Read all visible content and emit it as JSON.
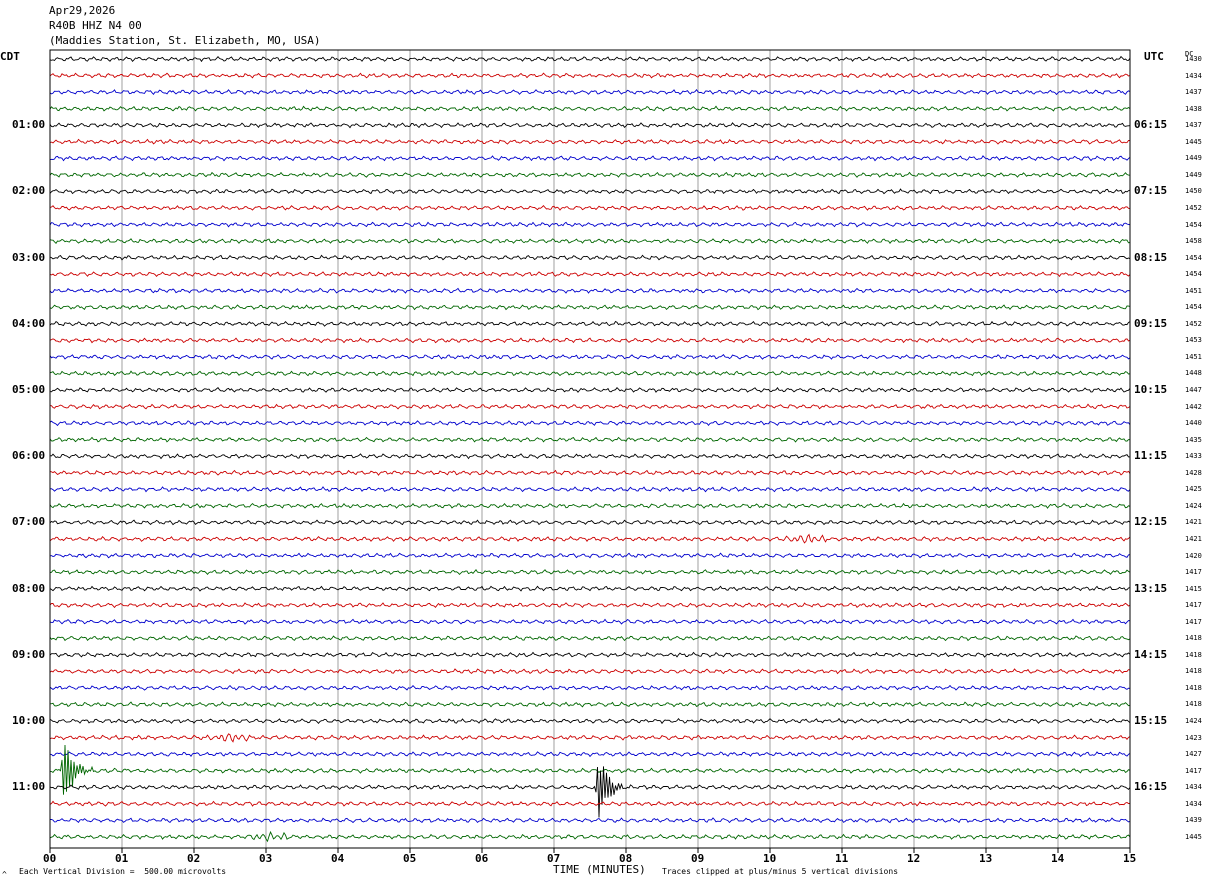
{
  "header": {
    "date": "Apr29,2026",
    "station": "R40B HHZ N4 00",
    "location": "(Maddies Station, St. Elizabeth, MO, USA)"
  },
  "left_tz": "CDT",
  "right_tz": "UTC",
  "dc_header": "DC",
  "footer": {
    "scale_note": "Each Vertical Division =  500.00 microvolts",
    "clip_note": "Traces clipped at plus/minus 5 vertical divisions",
    "corner_mark": "^"
  },
  "colors": {
    "trace_cycle": [
      "#000000",
      "#cc0000",
      "#0000cc",
      "#006600"
    ],
    "grid": "#888888",
    "axis": "#000000"
  },
  "chart_data": {
    "type": "line",
    "xlabel": "TIME (MINUTES)",
    "xlim": [
      0,
      15
    ],
    "x_ticks": [
      "00",
      "01",
      "02",
      "03",
      "04",
      "05",
      "06",
      "07",
      "08",
      "09",
      "10",
      "11",
      "12",
      "13",
      "14",
      "15"
    ],
    "rows_per_hour": 4,
    "row_count": 48,
    "left_hour_labels": [
      "01:00",
      "02:00",
      "03:00",
      "04:00",
      "05:00",
      "06:00",
      "07:00",
      "08:00",
      "09:00",
      "10:00",
      "11:00"
    ],
    "right_hour_labels": [
      "06:15",
      "07:15",
      "08:15",
      "09:15",
      "10:15",
      "11:15",
      "12:15",
      "13:15",
      "14:15",
      "15:15",
      "16:15"
    ],
    "dc_values": [
      "1430",
      "1434",
      "1437",
      "1438",
      "1437",
      "1445",
      "1449",
      "1449",
      "1450",
      "1452",
      "1454",
      "1458",
      "1454",
      "1454",
      "1451",
      "1454",
      "1452",
      "1453",
      "1451",
      "1448",
      "1447",
      "1442",
      "1440",
      "1435",
      "1433",
      "1428",
      "1425",
      "1424",
      "1421",
      "1421",
      "1420",
      "1417",
      "1415",
      "1417",
      "1417",
      "1418",
      "1418",
      "1418",
      "1418",
      "1418",
      "1424",
      "1423",
      "1427",
      "1417",
      "1434",
      "1434",
      "1439",
      "1445"
    ],
    "events": [
      {
        "row": 43,
        "minute": 0.2,
        "amplitude": "large"
      },
      {
        "row": 44,
        "minute": 7.62,
        "amplitude": "large"
      },
      {
        "row": 41,
        "minute": 2.5,
        "amplitude": "small"
      },
      {
        "row": 47,
        "minute": 3.05,
        "amplitude": "small"
      },
      {
        "row": 29,
        "minute": 10.5,
        "amplitude": "small"
      }
    ]
  }
}
